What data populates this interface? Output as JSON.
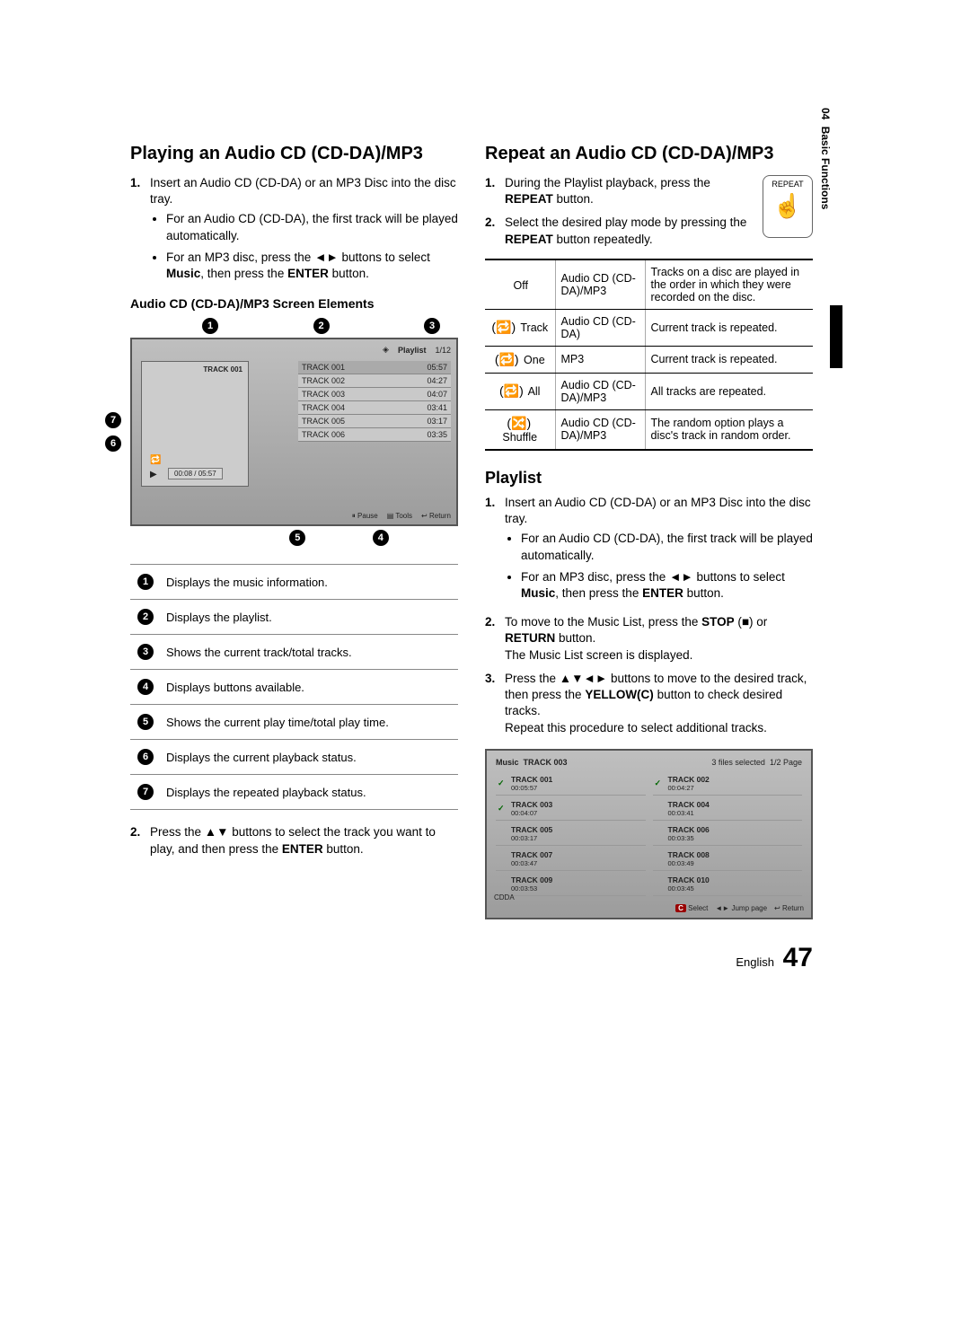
{
  "side": {
    "chapter": "04",
    "label": "Basic Functions"
  },
  "left": {
    "heading": "Playing an Audio CD (CD-DA)/MP3",
    "step1": "Insert an Audio CD (CD-DA) or an MP3 Disc into the disc tray.",
    "step1a": "For an Audio CD (CD-DA), the first track will be played automatically.",
    "step1b_pre": "For an MP3 disc, press the ◄► buttons to select ",
    "step1b_music": "Music",
    "step1b_mid": ", then press the ",
    "step1b_enter": "ENTER",
    "step1b_post": " button.",
    "sub": "Audio CD (CD-DA)/MP3 Screen Elements",
    "screen": {
      "playlist": "Playlist",
      "counter": "1/12",
      "currenttrack": "TRACK 001",
      "time": "00:08 / 05:57",
      "tracks": [
        {
          "n": "TRACK 001",
          "t": "05:57"
        },
        {
          "n": "TRACK 002",
          "t": "04:27"
        },
        {
          "n": "TRACK 003",
          "t": "04:07"
        },
        {
          "n": "TRACK 004",
          "t": "03:41"
        },
        {
          "n": "TRACK 005",
          "t": "03:17"
        },
        {
          "n": "TRACK 006",
          "t": "03:35"
        }
      ],
      "pause": "Pause",
      "tools": "Tools",
      "return": "Return"
    },
    "legend": [
      "Displays the music information.",
      "Displays the playlist.",
      "Shows the current track/total tracks.",
      "Displays buttons available.",
      "Shows the current play time/total play time.",
      "Displays the current playback status.",
      "Displays the repeated playback status."
    ],
    "step2_pre": "Press the ▲▼ buttons to select the track you want to play, and then press the ",
    "step2_enter": "ENTER",
    "step2_post": " button."
  },
  "right": {
    "heading": "Repeat an Audio CD (CD-DA)/MP3",
    "remote_label": "REPEAT",
    "step1_pre": "During the Playlist playback, press the ",
    "step1_btn": "REPEAT",
    "step1_post": " button.",
    "step2_pre": "Select the desired play mode by pressing the ",
    "step2_btn": "REPEAT",
    "step2_post": " button repeatedly.",
    "modes": [
      {
        "sym": "",
        "mode": "Off",
        "media": "Audio CD (CD-DA)/MP3",
        "desc": "Tracks on a disc are played in the order in which they were recorded on the disc."
      },
      {
        "sym": "(🔁)",
        "mode": "Track",
        "media": "Audio CD (CD-DA)",
        "desc": "Current track is repeated."
      },
      {
        "sym": "(🔁)",
        "mode": "One",
        "media": "MP3",
        "desc": "Current track is repeated."
      },
      {
        "sym": "(🔁)",
        "mode": "All",
        "media": "Audio CD (CD-DA)/MP3",
        "desc": "All tracks are repeated."
      },
      {
        "sym": "(🔀)",
        "mode": "Shuffle",
        "media": "Audio CD (CD-DA)/MP3",
        "desc": "The random option plays a disc's track in random order."
      }
    ],
    "playlist_heading": "Playlist",
    "p1": "Insert an Audio CD (CD-DA) or an MP3 Disc into the disc tray.",
    "p1a": "For an Audio CD (CD-DA), the first track will be played automatically.",
    "p1b_pre": "For an MP3 disc, press the ◄► buttons to select ",
    "p1b_music": "Music",
    "p1b_mid": ", then press the ",
    "p1b_enter": "ENTER",
    "p1b_post": " button.",
    "p2_pre": "To move to the Music List, press the ",
    "p2_stop": "STOP",
    "p2_mid": " (■) or ",
    "p2_ret": "RETURN",
    "p2_post": " button.",
    "p2_line2": "The Music List screen is displayed.",
    "p3_pre": "Press the ▲▼◄► buttons to move to the desired track, then press the ",
    "p3_yellow": "YELLOW(C)",
    "p3_mid": " button to check desired tracks.",
    "p3_line2": "Repeat this procedure to select additional tracks.",
    "music": {
      "title": "Music",
      "track": "TRACK 003",
      "sel": "3 files selected",
      "page": "1/2 Page",
      "cells": [
        {
          "n": "TRACK 001",
          "d": "00:05:57",
          "c": true
        },
        {
          "n": "TRACK 002",
          "d": "00:04:27",
          "c": true
        },
        {
          "n": "TRACK 003",
          "d": "00:04:07",
          "c": true
        },
        {
          "n": "TRACK 004",
          "d": "00:03:41",
          "c": false
        },
        {
          "n": "TRACK 005",
          "d": "00:03:17",
          "c": false
        },
        {
          "n": "TRACK 006",
          "d": "00:03:35",
          "c": false
        },
        {
          "n": "TRACK 007",
          "d": "00:03:47",
          "c": false
        },
        {
          "n": "TRACK 008",
          "d": "00:03:49",
          "c": false
        },
        {
          "n": "TRACK 009",
          "d": "00:03:53",
          "c": false
        },
        {
          "n": "TRACK 010",
          "d": "00:03:45",
          "c": false
        }
      ],
      "cdda": "CDDA",
      "select": "Select",
      "jump": "Jump page",
      "return": "Return"
    }
  },
  "footer": {
    "lang": "English",
    "page": "47"
  }
}
